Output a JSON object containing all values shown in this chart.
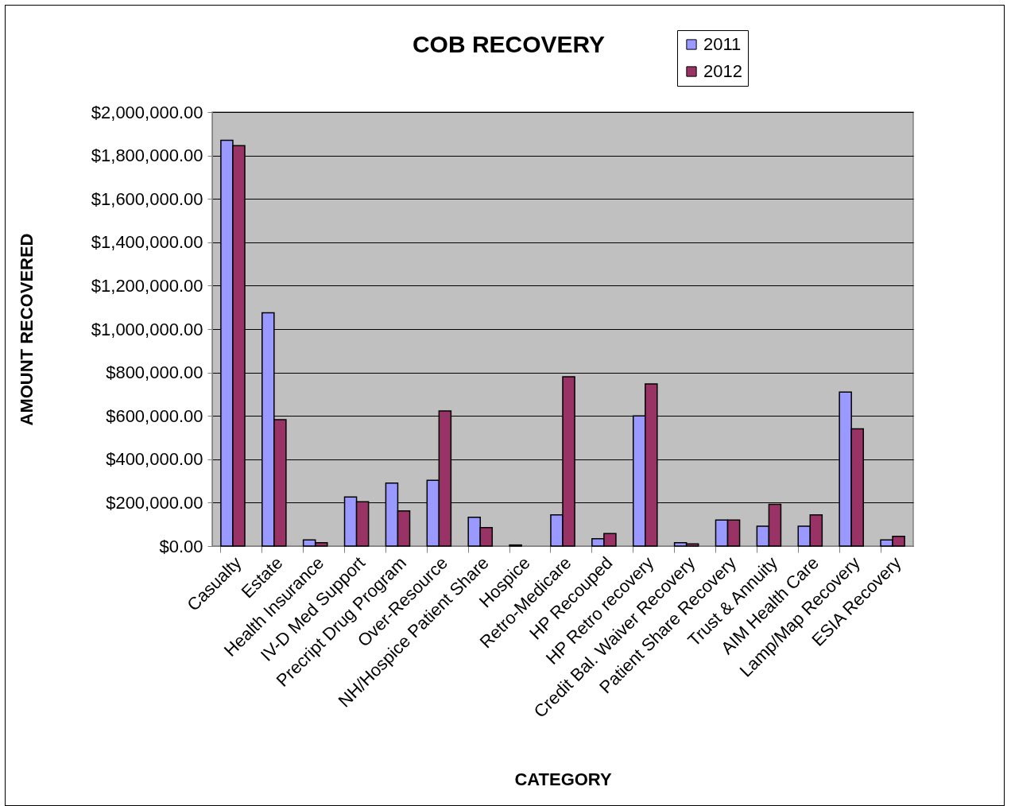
{
  "chart_data": {
    "type": "bar",
    "title": "COB RECOVERY",
    "xlabel": "CATEGORY",
    "ylabel": "AMOUNT  RECOVERED",
    "categories": [
      "Casualty",
      "Estate",
      "Health Insurance",
      "IV-D Med Support",
      "Precript Drug Program",
      "Over-Resource",
      "NH/Hospice Patient Share",
      "Hospice",
      "Retro-Medicare",
      "HP Recouped",
      "HP Retro  recovery",
      "Credit Bal. Waiver Recovery",
      "Patient Share Recovery",
      "Trust & Annuity",
      "AIM Health Care",
      "Lamp/Map Recovery",
      "ESIA Recovery"
    ],
    "series": [
      {
        "name": "2011",
        "color": "#9999ff",
        "values": [
          1870000,
          1075000,
          28000,
          226000,
          290000,
          303000,
          133000,
          5000,
          144000,
          34000,
          600000,
          16000,
          120000,
          92000,
          92000,
          710000,
          28000
        ]
      },
      {
        "name": "2012",
        "color": "#993366",
        "values": [
          1845000,
          582000,
          16000,
          204000,
          162000,
          623000,
          85000,
          null,
          780000,
          58000,
          747000,
          10000,
          120000,
          192000,
          144000,
          540000,
          45000
        ]
      }
    ],
    "ylim": [
      0,
      2000000
    ],
    "yticks": [
      {
        "value": 0,
        "label": "$0.00"
      },
      {
        "value": 200000,
        "label": "$200,000.00"
      },
      {
        "value": 400000,
        "label": "$400,000.00"
      },
      {
        "value": 600000,
        "label": "$600,000.00"
      },
      {
        "value": 800000,
        "label": "$800,000.00"
      },
      {
        "value": 1000000,
        "label": "$1,000,000.00"
      },
      {
        "value": 1200000,
        "label": "$1,200,000.00"
      },
      {
        "value": 1400000,
        "label": "$1,400,000.00"
      },
      {
        "value": 1600000,
        "label": "$1,600,000.00"
      },
      {
        "value": 1800000,
        "label": "$1,800,000.00"
      },
      {
        "value": 2000000,
        "label": "$2,000,000.00"
      }
    ],
    "grid": "y",
    "legend": "top right"
  }
}
